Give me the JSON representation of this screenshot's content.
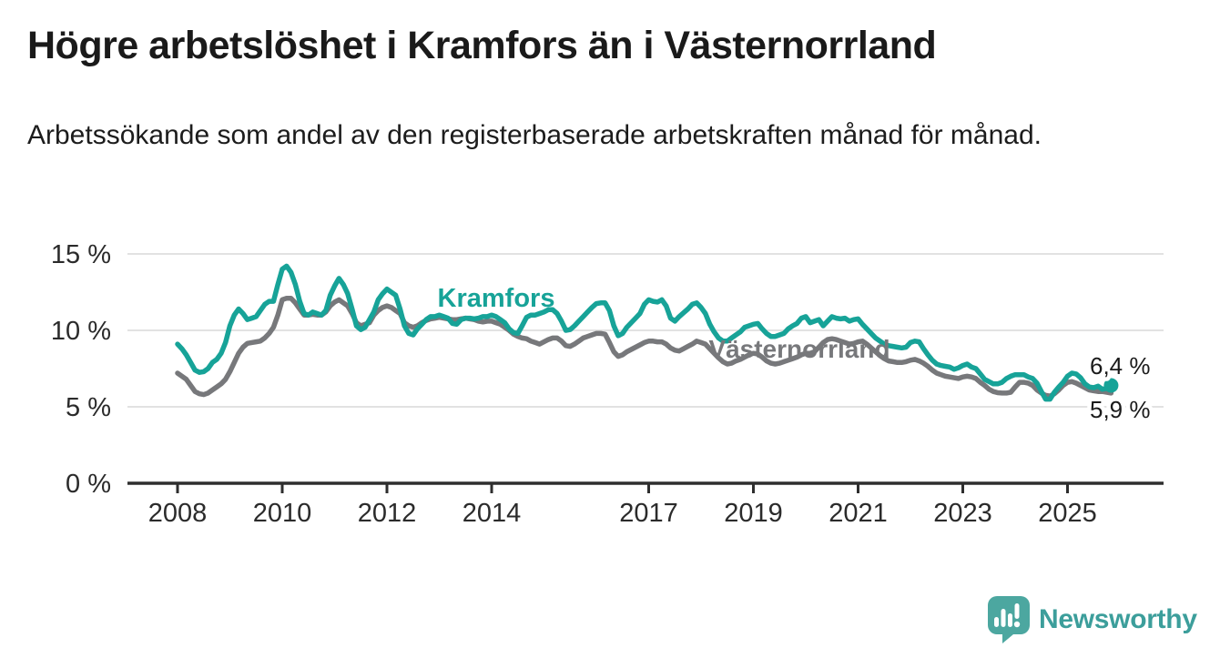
{
  "title": "Högre arbetslöshet i Kramfors än i Västernorrland",
  "subtitle": "Arbetssökande som andel av den registerbaserade arbetskraften månad för månad.",
  "branding": {
    "logo_text": "Newsworthy",
    "logo_icon": "bar-chart-speech-bubble-icon",
    "wordmark_color": "#3c9e9b",
    "icon_color": "#4ca7a0"
  },
  "chart_data": {
    "type": "line",
    "title": "Högre arbetslöshet i Kramfors än i Västernorrland",
    "subtitle": "Arbetssökande som andel av den registerbaserade arbetskraften månad för månad.",
    "unit": "%",
    "grid": true,
    "legend_position": "inline-labels",
    "x_axis": {
      "tick_years": [
        2008,
        2010,
        2012,
        2014,
        2017,
        2019,
        2021,
        2023,
        2025
      ],
      "tick_labels": [
        "2008",
        "2010",
        "2012",
        "2014",
        "2017",
        "2019",
        "2021",
        "2023",
        "2025"
      ]
    },
    "y_axis": {
      "tick_values": [
        15,
        10,
        5,
        0
      ],
      "tick_labels": [
        "15 %",
        "10 %",
        "5 %",
        "0 %"
      ],
      "ylim": [
        0,
        15.8
      ]
    },
    "start_year": 2008,
    "step_months": 1,
    "series": [
      {
        "name": "Kramfors",
        "color": "#17a398",
        "end_label": "6,4 %",
        "end_dot": true,
        "values": [
          9.1,
          8.8,
          8.4,
          7.9,
          7.4,
          7.25,
          7.3,
          7.5,
          7.9,
          8.1,
          8.5,
          9.2,
          10.3,
          11,
          11.4,
          11.1,
          10.7,
          10.8,
          10.9,
          11.3,
          11.7,
          11.9,
          11.9,
          13,
          14,
          14.2,
          13.8,
          13,
          11.9,
          11.1,
          11,
          11.2,
          11.1,
          11,
          11.3,
          12.3,
          12.9,
          13.4,
          13,
          12.4,
          11.4,
          10.3,
          10.05,
          10.2,
          10.7,
          11.2,
          12,
          12.4,
          12.7,
          12.5,
          12.3,
          11.4,
          10.3,
          9.8,
          9.7,
          10.1,
          10.4,
          10.7,
          10.9,
          10.9,
          11,
          10.9,
          10.8,
          10.45,
          10.4,
          10.7,
          10.8,
          10.8,
          10.75,
          10.8,
          10.9,
          10.9,
          11,
          10.9,
          10.7,
          10.5,
          10.1,
          9.85,
          9.8,
          10.3,
          10.85,
          11,
          11,
          11.1,
          11.2,
          11.35,
          11.35,
          11.1,
          10.6,
          10,
          10.05,
          10.3,
          10.6,
          10.9,
          11.2,
          11.5,
          11.75,
          11.8,
          11.8,
          11.3,
          10.3,
          9.65,
          9.8,
          10.2,
          10.5,
          10.8,
          11.1,
          11.7,
          12,
          11.9,
          11.85,
          12,
          11.6,
          10.8,
          10.6,
          10.9,
          11.15,
          11.4,
          11.7,
          11.8,
          11.5,
          11.1,
          10.4,
          9.9,
          9.5,
          9.3,
          9.3,
          9.5,
          9.7,
          9.9,
          10.2,
          10.3,
          10.4,
          10.45,
          10.1,
          9.8,
          9.6,
          9.6,
          9.7,
          9.8,
          10.1,
          10.3,
          10.45,
          10.8,
          10.9,
          10.5,
          10.6,
          10.7,
          10.3,
          10.6,
          10.9,
          10.8,
          10.75,
          10.8,
          10.6,
          10.7,
          10.75,
          10.4,
          10.1,
          9.8,
          9.5,
          9.3,
          9.1,
          9,
          8.95,
          8.9,
          8.85,
          8.9,
          9.2,
          9.3,
          9.25,
          8.8,
          8.4,
          8.05,
          7.8,
          7.7,
          7.65,
          7.6,
          7.45,
          7.55,
          7.7,
          7.8,
          7.6,
          7.5,
          7.15,
          6.8,
          6.65,
          6.5,
          6.5,
          6.6,
          6.85,
          7,
          7.1,
          7.1,
          7.1,
          6.95,
          6.85,
          6.55,
          6,
          5.5,
          5.5,
          5.95,
          6.3,
          6.6,
          7,
          7.2,
          7.15,
          6.9,
          6.5,
          6.3,
          6.25,
          6.35,
          6.15,
          6.2,
          6.4
        ]
      },
      {
        "name": "Västernorrland",
        "color": "#77787b",
        "end_label": "5,9 %",
        "end_dot": false,
        "values": [
          7.2,
          7,
          6.8,
          6.4,
          6,
          5.85,
          5.8,
          5.9,
          6.1,
          6.3,
          6.5,
          6.8,
          7.3,
          7.9,
          8.5,
          8.9,
          9.15,
          9.2,
          9.25,
          9.3,
          9.5,
          9.8,
          10.2,
          11,
          12,
          12.1,
          12.1,
          11.8,
          11.4,
          11,
          11,
          11.05,
          11,
          11,
          11.2,
          11.6,
          11.85,
          12,
          11.8,
          11.6,
          11.1,
          10.5,
          10.3,
          10.4,
          10.5,
          11,
          11.3,
          11.5,
          11.6,
          11.5,
          11.3,
          11.1,
          10.5,
          10.3,
          10.2,
          10.3,
          10.5,
          10.65,
          10.75,
          10.8,
          10.85,
          10.8,
          10.75,
          10.7,
          10.7,
          10.75,
          10.8,
          10.75,
          10.7,
          10.6,
          10.55,
          10.6,
          10.6,
          10.5,
          10.4,
          10.2,
          10,
          9.75,
          9.6,
          9.5,
          9.45,
          9.3,
          9.2,
          9.1,
          9.25,
          9.4,
          9.5,
          9.5,
          9.3,
          9,
          8.95,
          9.1,
          9.3,
          9.5,
          9.6,
          9.7,
          9.8,
          9.8,
          9.75,
          9.2,
          8.6,
          8.3,
          8.4,
          8.6,
          8.75,
          8.9,
          9.05,
          9.2,
          9.3,
          9.3,
          9.25,
          9.25,
          9.1,
          8.85,
          8.7,
          8.65,
          8.8,
          8.95,
          9.1,
          9.3,
          9.2,
          9.1,
          8.8,
          8.5,
          8.2,
          7.95,
          7.8,
          7.85,
          8,
          8.1,
          8.25,
          8.4,
          8.5,
          8.45,
          8.25,
          8,
          7.85,
          7.8,
          7.85,
          7.95,
          8.05,
          8.15,
          8.25,
          8.4,
          8.5,
          8.5,
          8.6,
          8.9,
          9.2,
          9.4,
          9.45,
          9.4,
          9.3,
          9.2,
          9.1,
          9.15,
          9.25,
          9.3,
          9.1,
          8.85,
          8.6,
          8.35,
          8.15,
          8,
          7.95,
          7.9,
          7.9,
          7.95,
          8.05,
          8.1,
          8,
          7.85,
          7.65,
          7.4,
          7.2,
          7.1,
          7,
          6.95,
          6.9,
          6.85,
          6.95,
          7,
          6.95,
          6.85,
          6.6,
          6.4,
          6.15,
          6,
          5.92,
          5.9,
          5.9,
          5.95,
          6.3,
          6.6,
          6.6,
          6.55,
          6.4,
          6.1,
          5.9,
          5.75,
          5.7,
          5.85,
          6.1,
          6.4,
          6.6,
          6.65,
          6.55,
          6.4,
          6.25,
          6.1,
          6.05,
          6,
          6,
          5.95,
          5.9
        ]
      }
    ]
  }
}
